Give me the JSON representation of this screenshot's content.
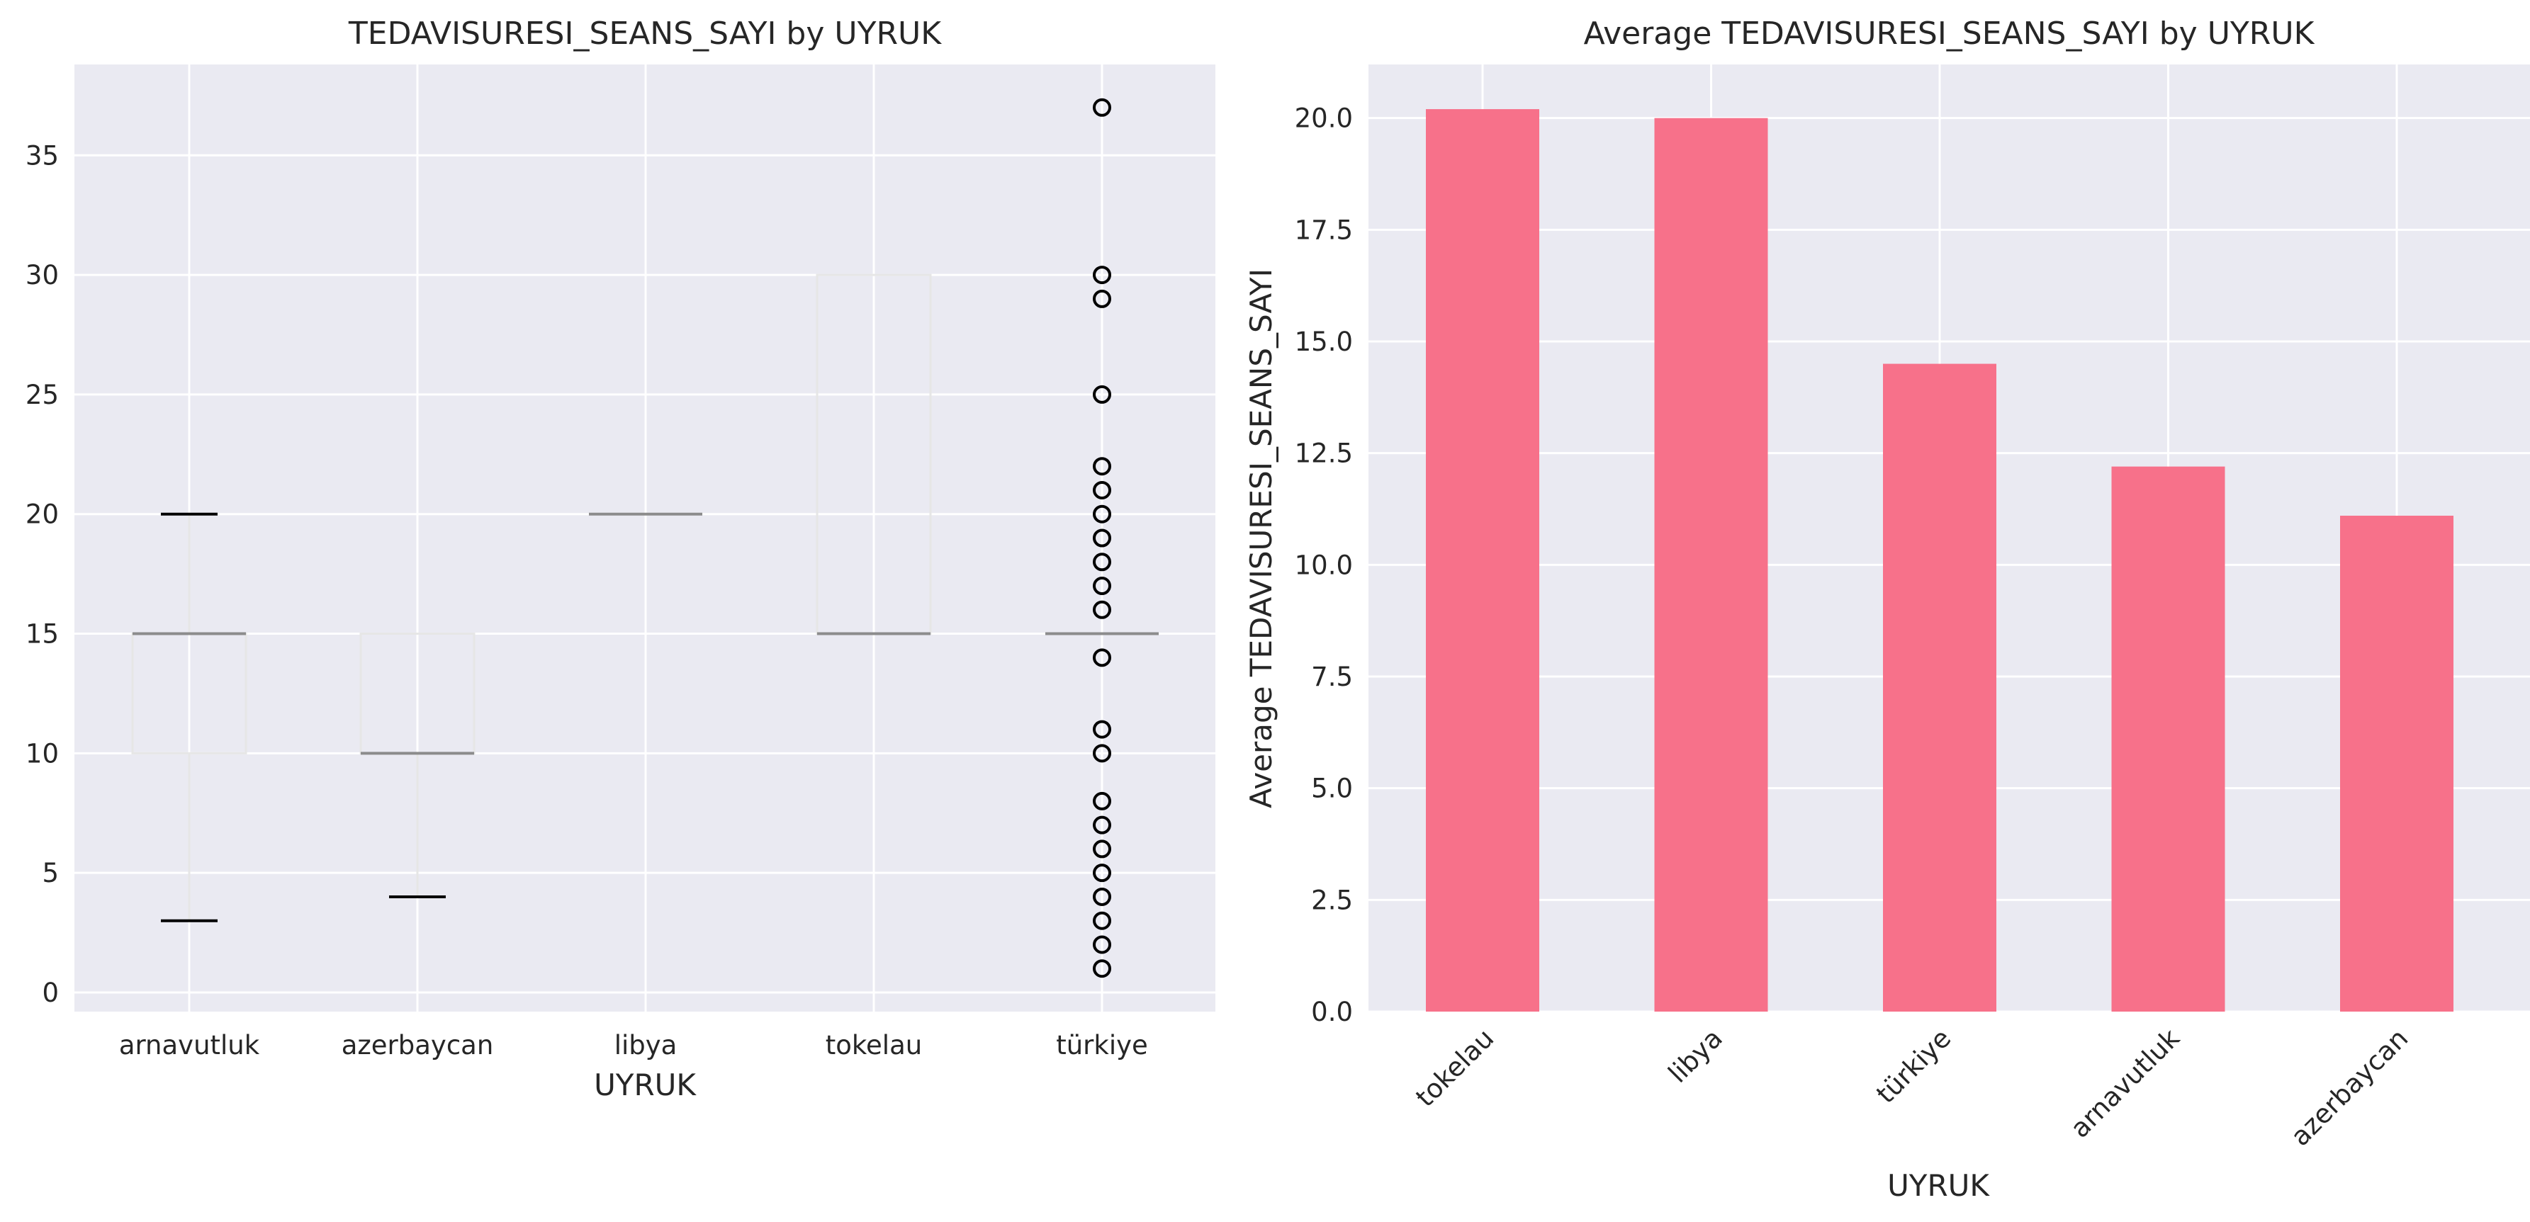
{
  "chart_data": [
    {
      "type": "box",
      "title": "TEDAVISURESI_SEANS_SAYI by UYRUK",
      "xlabel": "UYRUK",
      "ylabel": "",
      "ylim": [
        -0.8,
        38.8
      ],
      "yticks": [
        0,
        5,
        10,
        15,
        20,
        25,
        30,
        35
      ],
      "grid": true,
      "categories": [
        "arnavutluk",
        "azerbaycan",
        "libya",
        "tokelau",
        "türkiye"
      ],
      "boxes": [
        {
          "category": "arnavutluk",
          "whislo": 3,
          "q1": 10,
          "med": 15,
          "q3": 15,
          "whishi": 20,
          "fliers": []
        },
        {
          "category": "azerbaycan",
          "whislo": 4,
          "q1": 10,
          "med": 10,
          "q3": 15,
          "whishi": 15,
          "fliers": []
        },
        {
          "category": "libya",
          "whislo": 20,
          "q1": 20,
          "med": 20,
          "q3": 20,
          "whishi": 20,
          "fliers": []
        },
        {
          "category": "tokelau",
          "whislo": 15,
          "q1": 15,
          "med": 15,
          "q3": 30,
          "whishi": 30,
          "fliers": []
        },
        {
          "category": "türkiye",
          "whislo": 15,
          "q1": 15,
          "med": 15,
          "q3": 15,
          "whishi": 15,
          "fliers": [
            1,
            2,
            3,
            4,
            5,
            6,
            7,
            8,
            10,
            11,
            14,
            16,
            17,
            18,
            19,
            20,
            21,
            22,
            25,
            29,
            30,
            37
          ]
        }
      ]
    },
    {
      "type": "bar",
      "title": "Average TEDAVISURESI_SEANS_SAYI by UYRUK",
      "xlabel": "UYRUK",
      "ylabel": "Average TEDAVISURESI_SEANS_SAYI",
      "ylim": [
        0,
        21.2
      ],
      "yticks": [
        0.0,
        2.5,
        5.0,
        7.5,
        10.0,
        12.5,
        15.0,
        17.5,
        20.0
      ],
      "grid": true,
      "categories": [
        "tokelau",
        "libya",
        "türkiye",
        "arnavutluk",
        "azerbaycan"
      ],
      "values": [
        20.2,
        20.0,
        14.5,
        12.2,
        11.1
      ],
      "bar_color": "#f7718a"
    }
  ],
  "colors": {
    "plot_background": "#eaeaf2",
    "grid": "#ffffff",
    "box_line": "#e6e6e6",
    "median": "#8c8c8c",
    "cap": "#000000",
    "flier": "#000000"
  }
}
